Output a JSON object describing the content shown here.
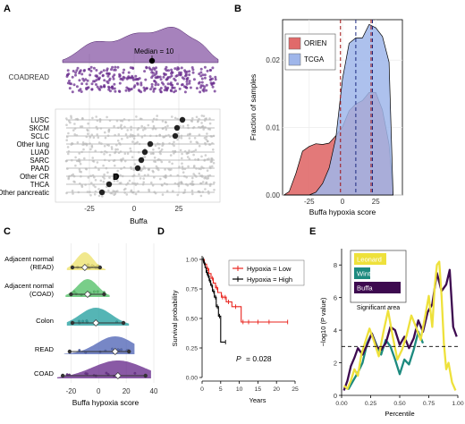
{
  "panels": {
    "A": "A",
    "B": "B",
    "C": "C",
    "D": "D",
    "E": "E"
  },
  "colors": {
    "coadread": "#6b2f8f",
    "orien": "#e06a6a",
    "tcga": "#9fb6ea",
    "cancer_dots": "#b9b9b9",
    "hypoxia_low": "#e8231d",
    "hypoxia_high": "#000000",
    "leonard": "#eee13b",
    "winter": "#1d8a7f",
    "buffa": "#3d0a4f"
  },
  "chart_data": [
    {
      "id": "A",
      "type": "scatter",
      "xlabel": "Buffa",
      "xlim": [
        -45,
        50
      ],
      "xticks": [
        "-25",
        "0",
        "25"
      ],
      "annotation": "Median = 10",
      "top_group": {
        "label": "COADREAD",
        "median": 10
      },
      "cancers": [
        {
          "label": "LUSC",
          "median": 27
        },
        {
          "label": "SKCM",
          "median": 24
        },
        {
          "label": "SCLC",
          "median": 23
        },
        {
          "label": "Other lung",
          "median": 9
        },
        {
          "label": "LUAD",
          "median": 6
        },
        {
          "label": "SARC",
          "median": 4
        },
        {
          "label": "PAAD",
          "median": 2
        },
        {
          "label": "Other CR",
          "median": -10
        },
        {
          "label": "THCA",
          "median": -14
        },
        {
          "label": "Other pancreatic",
          "median": -18
        }
      ],
      "marker": "D"
    },
    {
      "id": "B",
      "type": "area",
      "xlabel": "Buffa hypoxia score",
      "ylabel": "Fraction of samples",
      "xlim": [
        -45,
        45
      ],
      "ylim": [
        0,
        0.026
      ],
      "xticks": [
        -25,
        0,
        25
      ],
      "yticks": [
        0.0,
        0.01,
        0.02
      ],
      "ytick_labels": [
        "0.00",
        "0.01",
        "0.02"
      ],
      "legend": [
        "ORIEN",
        "TCGA"
      ],
      "legend_position": "top-left",
      "x": [
        -44,
        -40,
        -35,
        -30,
        -25,
        -20,
        -15,
        -10,
        -5,
        0,
        5,
        10,
        15,
        20,
        25,
        30,
        35,
        38
      ],
      "series": [
        {
          "name": "ORIEN",
          "values": [
            0.0,
            0.0005,
            0.0032,
            0.0065,
            0.0072,
            0.0076,
            0.0075,
            0.0077,
            0.0088,
            0.0101,
            0.0125,
            0.0135,
            0.014,
            0.0152,
            0.0152,
            0.0126,
            0.0075,
            0.0
          ]
        },
        {
          "name": "TCGA",
          "values": [
            0.0,
            0.0,
            0.0,
            0.0,
            0.0,
            0.0004,
            0.0017,
            0.004,
            0.0085,
            0.0172,
            0.0225,
            0.0233,
            0.0233,
            0.0253,
            0.0248,
            0.0235,
            0.0197,
            0.0
          ]
        }
      ],
      "vlines": [
        {
          "x": -1.5,
          "color": "#a01010"
        },
        {
          "x": 10,
          "color": "#1d2a80"
        },
        {
          "x": 21.5,
          "color": "#a01010"
        },
        {
          "x": 22.5,
          "color": "#1d2a80"
        }
      ]
    },
    {
      "id": "C",
      "type": "scatter",
      "xlabel": "Buffa hypoxia score",
      "xlim": [
        -30,
        40
      ],
      "xticks": [
        -20,
        0,
        20,
        40
      ],
      "groups": [
        {
          "label": "Adjacent normal (READ)",
          "line1": "Adjacent normal",
          "line2": "(READ)",
          "min": -19,
          "median": -10,
          "max": 1,
          "color": "#ede271"
        },
        {
          "label": "Adjacent normal (COAD)",
          "line1": "Adjacent normal",
          "line2": "(COAD)",
          "min": -20,
          "median": -8,
          "max": 4,
          "color": "#57c26b"
        },
        {
          "label": "Colon",
          "line1": "Colon",
          "line2": "",
          "min": -19,
          "median": -2,
          "max": 18,
          "color": "#2ba3a3"
        },
        {
          "label": "READ",
          "line1": "READ",
          "line2": "",
          "min": -21,
          "median": 12,
          "max": 22,
          "color": "#5569b8"
        },
        {
          "label": "COAD",
          "line1": "COAD",
          "line2": "",
          "min": -26,
          "median": 14,
          "max": 34,
          "color": "#6b2f8f"
        }
      ]
    },
    {
      "id": "D",
      "type": "line",
      "xlabel": "Years",
      "ylabel": "Survival probability",
      "xlim": [
        0,
        25
      ],
      "ylim": [
        0,
        1
      ],
      "xticks": [
        0,
        5,
        10,
        15,
        20,
        25
      ],
      "yticks": [
        0.0,
        0.25,
        0.5,
        0.75,
        1.0
      ],
      "ytick_labels": [
        "0.00",
        "0.25",
        "0.50",
        "0.75",
        "1.00"
      ],
      "legend": [
        "Hypoxia = Low",
        "Hypoxia = High"
      ],
      "pvalue_prefix": "P",
      "pvalue_value": "= 0.028",
      "series": [
        {
          "name": "Hypoxia = Low",
          "x": [
            0,
            0.6,
            1.2,
            1.8,
            2.4,
            3.0,
            3.6,
            4.2,
            5.2,
            6.5,
            8.0,
            10.5,
            23
          ],
          "y": [
            1.0,
            0.96,
            0.92,
            0.88,
            0.84,
            0.8,
            0.76,
            0.72,
            0.68,
            0.64,
            0.6,
            0.47,
            0.47
          ],
          "censor_x": [
            1.5,
            2.8,
            3.9,
            5.5,
            6.2,
            7.1,
            9.0,
            11,
            12.5,
            15,
            18,
            23
          ]
        },
        {
          "name": "Hypoxia = High",
          "x": [
            0,
            0.4,
            0.8,
            1.1,
            1.5,
            1.9,
            2.3,
            2.8,
            3.3,
            3.8,
            4.4,
            5.0,
            6.3
          ],
          "y": [
            1.0,
            0.97,
            0.93,
            0.89,
            0.86,
            0.82,
            0.78,
            0.73,
            0.68,
            0.6,
            0.52,
            0.3,
            0.3
          ],
          "censor_x": [
            0.3,
            0.6,
            1.3,
            1.7,
            2.1,
            2.6,
            3.1,
            3.6,
            4.1,
            4.7,
            6.3
          ]
        }
      ]
    },
    {
      "id": "E",
      "type": "line",
      "xlabel": "Percentile",
      "ylabel": "−log10 (P value)",
      "xlim": [
        0,
        1
      ],
      "ylim": [
        0,
        9
      ],
      "xticks": [
        0.0,
        0.25,
        0.5,
        0.75,
        1.0
      ],
      "xtick_labels": [
        "0.00",
        "0.25",
        "0.50",
        "0.75",
        "1.00"
      ],
      "yticks": [
        0,
        2,
        4,
        6,
        8
      ],
      "threshold": 3,
      "legend_title": "Significant area",
      "legend": [
        "Leonard",
        "Winter",
        "Buffa"
      ],
      "series": [
        {
          "name": "Leonard",
          "x": [
            0.02,
            0.05,
            0.08,
            0.11,
            0.14,
            0.17,
            0.2,
            0.24,
            0.28,
            0.32,
            0.36,
            0.4,
            0.44,
            0.48,
            0.52,
            0.56,
            0.6,
            0.64,
            0.68,
            0.72,
            0.75,
            0.78,
            0.8,
            0.82,
            0.84,
            0.86,
            0.88,
            0.9,
            0.92,
            0.95,
            0.98
          ],
          "values": [
            0.6,
            0.4,
            0.9,
            1.6,
            1.2,
            2.5,
            3.2,
            4.1,
            3.3,
            2.4,
            3.9,
            5.2,
            3.6,
            2.2,
            2.8,
            3.7,
            4.9,
            4.2,
            3.4,
            4.9,
            6.1,
            4.2,
            6.6,
            8.0,
            8.2,
            6.1,
            3.2,
            1.6,
            2.0,
            0.8,
            0.3
          ]
        },
        {
          "name": "Winter",
          "x": [
            0.02,
            0.06,
            0.1,
            0.14,
            0.18,
            0.22,
            0.26,
            0.3,
            0.34,
            0.38,
            0.42,
            0.46,
            0.5,
            0.54,
            0.58,
            0.62,
            0.66,
            0.7
          ],
          "values": [
            0.5,
            0.4,
            0.9,
            1.4,
            2.0,
            3.2,
            3.8,
            3.1,
            2.5,
            3.4,
            3.0,
            2.2,
            1.3,
            2.2,
            1.9,
            2.8,
            3.9,
            3.2
          ]
        },
        {
          "name": "Buffa",
          "x": [
            0.02,
            0.05,
            0.08,
            0.11,
            0.14,
            0.18,
            0.22,
            0.26,
            0.3,
            0.34,
            0.38,
            0.42,
            0.46,
            0.5,
            0.54,
            0.58,
            0.62,
            0.66,
            0.7,
            0.74,
            0.78,
            0.82,
            0.86,
            0.9,
            0.93,
            0.96,
            0.99
          ],
          "values": [
            0.3,
            0.9,
            1.8,
            2.3,
            2.9,
            2.5,
            3.1,
            3.8,
            3.0,
            2.8,
            3.2,
            4.2,
            4.0,
            3.1,
            3.6,
            2.9,
            3.5,
            4.6,
            3.9,
            5.1,
            5.6,
            7.5,
            6.4,
            6.8,
            7.7,
            4.2,
            3.6
          ]
        }
      ]
    }
  ]
}
